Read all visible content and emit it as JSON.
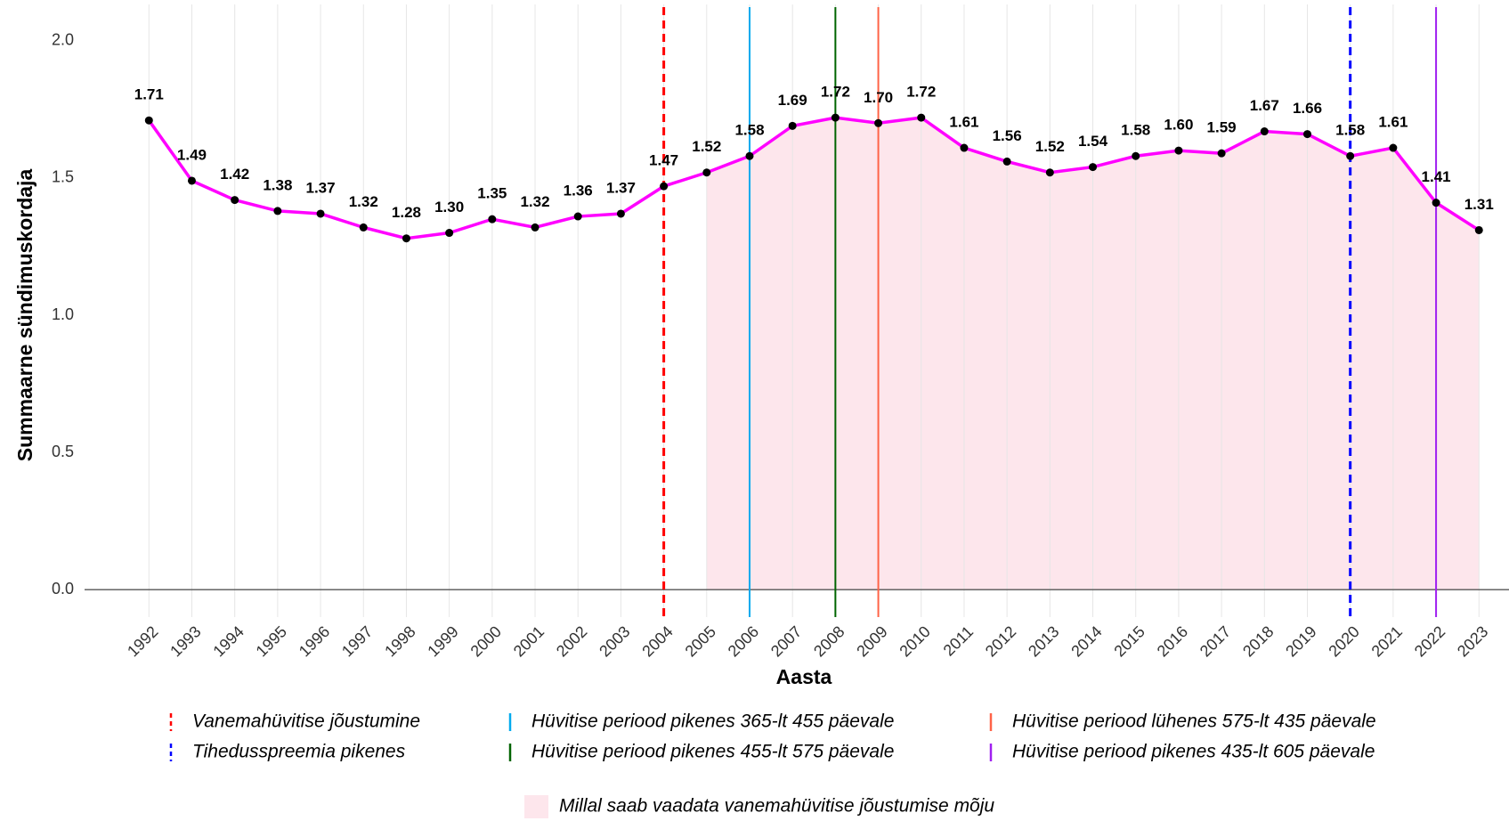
{
  "chart_data": {
    "type": "line",
    "x_label": "Aasta",
    "y_label": "Summaarne sündimuskordaja",
    "x": [
      1992,
      1993,
      1994,
      1995,
      1996,
      1997,
      1998,
      1999,
      2000,
      2001,
      2002,
      2003,
      2004,
      2005,
      2006,
      2007,
      2008,
      2009,
      2010,
      2011,
      2012,
      2013,
      2014,
      2015,
      2016,
      2017,
      2018,
      2019,
      2020,
      2021,
      2022,
      2023
    ],
    "values": [
      1.71,
      1.49,
      1.42,
      1.38,
      1.37,
      1.32,
      1.28,
      1.3,
      1.35,
      1.32,
      1.36,
      1.37,
      1.47,
      1.52,
      1.58,
      1.69,
      1.72,
      1.7,
      1.72,
      1.61,
      1.56,
      1.52,
      1.54,
      1.58,
      1.6,
      1.59,
      1.67,
      1.66,
      1.58,
      1.61,
      1.41,
      1.31
    ],
    "value_labels": [
      "1.71",
      "1.49",
      "1.42",
      "1.38",
      "1.37",
      "1.32",
      "1.28",
      "1.30",
      "1.35",
      "1.32",
      "1.36",
      "1.37",
      "1.47",
      "1.52",
      "1.58",
      "1.69",
      "1.72",
      "1.70",
      "1.72",
      "1.61",
      "1.56",
      "1.52",
      "1.54",
      "1.58",
      "1.60",
      "1.59",
      "1.67",
      "1.66",
      "1.58",
      "1.61",
      "1.41",
      "1.31"
    ],
    "color": "#ff00ff",
    "marker_color": "#000000",
    "xlim": [
      1990.5,
      2023.7
    ],
    "xticks": [
      1992,
      1993,
      1994,
      1995,
      1996,
      1997,
      1998,
      1999,
      2000,
      2001,
      2002,
      2003,
      2004,
      2005,
      2006,
      2007,
      2008,
      2009,
      2010,
      2011,
      2012,
      2013,
      2014,
      2015,
      2016,
      2017,
      2018,
      2019,
      2020,
      2021,
      2022,
      2023
    ],
    "ylim": [
      -0.1,
      2.1
    ],
    "yticks": [
      {
        "value": 0,
        "label": "0.0"
      },
      {
        "value": 0.5,
        "label": "0.5"
      },
      {
        "value": 1,
        "label": "1.0"
      },
      {
        "value": 1.5,
        "label": "1.5"
      },
      {
        "value": 2,
        "label": "2.0"
      }
    ],
    "grid": "x",
    "events": [
      {
        "name": "Vanemahüvitise jõustumine",
        "x": 2004,
        "color": "#ff0000",
        "dashed": true
      },
      {
        "name": "Tihedusspreemia pikenes",
        "x": 2020,
        "color": "#0000ff",
        "dashed": true
      },
      {
        "name": "Hüvitise periood pikenes 365-lt 455 päevale",
        "x": 2006,
        "color": "#00aaee",
        "dashed": false
      },
      {
        "name": "Hüvitise periood pikenes 455-lt 575 päevale",
        "x": 2008,
        "color": "#006400",
        "dashed": false
      },
      {
        "name": "Hüvitise periood lühenes 575-lt 435 päevale",
        "x": 2009,
        "color": "#ff6347",
        "dashed": false
      },
      {
        "name": "Hüvitise periood pikenes 435-lt 605 päevale",
        "x": 2022,
        "color": "#a020f0",
        "dashed": false
      }
    ],
    "shade": {
      "label": "Millal saab vaadata vanemahüvitise jõustumise mõju",
      "from": 2005,
      "to": 2023,
      "color": "#fde6ec"
    }
  }
}
